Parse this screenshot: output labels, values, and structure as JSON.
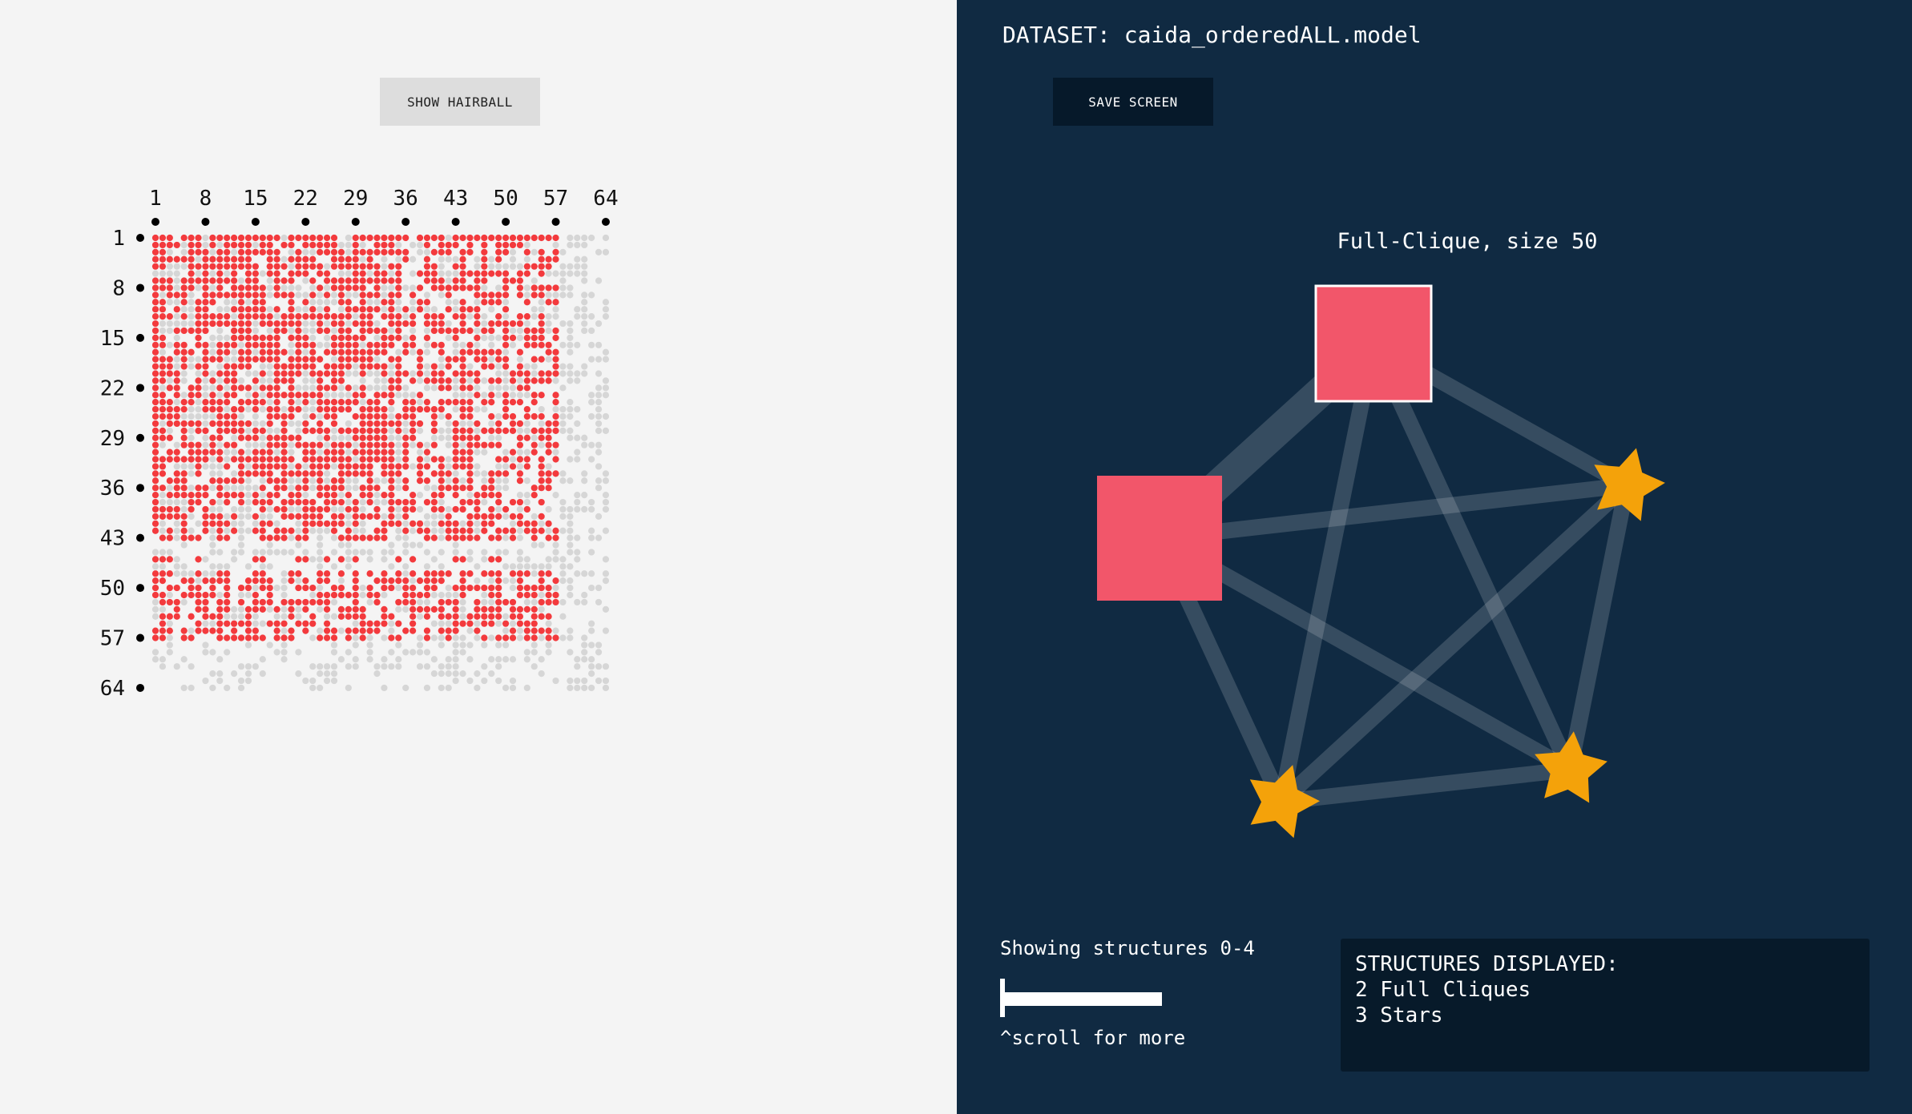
{
  "left_panel": {
    "hairball_button": "SHOW HAIRBALL",
    "matrix": {
      "size": 64,
      "col_tick_labels": [
        "1",
        "8",
        "15",
        "22",
        "29",
        "36",
        "43",
        "50",
        "57",
        "64"
      ],
      "row_tick_labels": [
        "1",
        "8",
        "15",
        "22",
        "29",
        "36",
        "43",
        "50",
        "57",
        "64"
      ],
      "filled_color": "#f33a3d",
      "empty_color": "#d6d6d6"
    }
  },
  "right_panel": {
    "dataset_label": "DATASET: caida_orderedALL.model",
    "save_button": "SAVE SCREEN",
    "graph": {
      "title": "Full-Clique, size 50",
      "nodes": [
        {
          "id": "n0",
          "type": "full-clique",
          "name": "full-clique-node",
          "color": "#f2566a",
          "selected": true
        },
        {
          "id": "n1",
          "type": "full-clique",
          "name": "full-clique-node",
          "color": "#f2566a",
          "selected": false
        },
        {
          "id": "n2",
          "type": "star",
          "name": "star-node",
          "color": "#f4a20a"
        },
        {
          "id": "n3",
          "type": "star",
          "name": "star-node",
          "color": "#f4a20a"
        },
        {
          "id": "n4",
          "type": "star",
          "name": "star-node",
          "color": "#f4a20a"
        }
      ],
      "edges": [
        [
          "n0",
          "n1"
        ],
        [
          "n0",
          "n2"
        ],
        [
          "n0",
          "n3"
        ],
        [
          "n0",
          "n4"
        ],
        [
          "n1",
          "n2"
        ],
        [
          "n1",
          "n3"
        ],
        [
          "n1",
          "n4"
        ],
        [
          "n2",
          "n3"
        ],
        [
          "n2",
          "n4"
        ],
        [
          "n3",
          "n4"
        ]
      ]
    },
    "showing_label": "Showing structures 0-4",
    "scroll_hint": "^scroll for more",
    "summary": {
      "heading": "STRUCTURES DISPLAYED:",
      "line1": "2 Full Cliques",
      "line2": "3 Stars"
    }
  }
}
